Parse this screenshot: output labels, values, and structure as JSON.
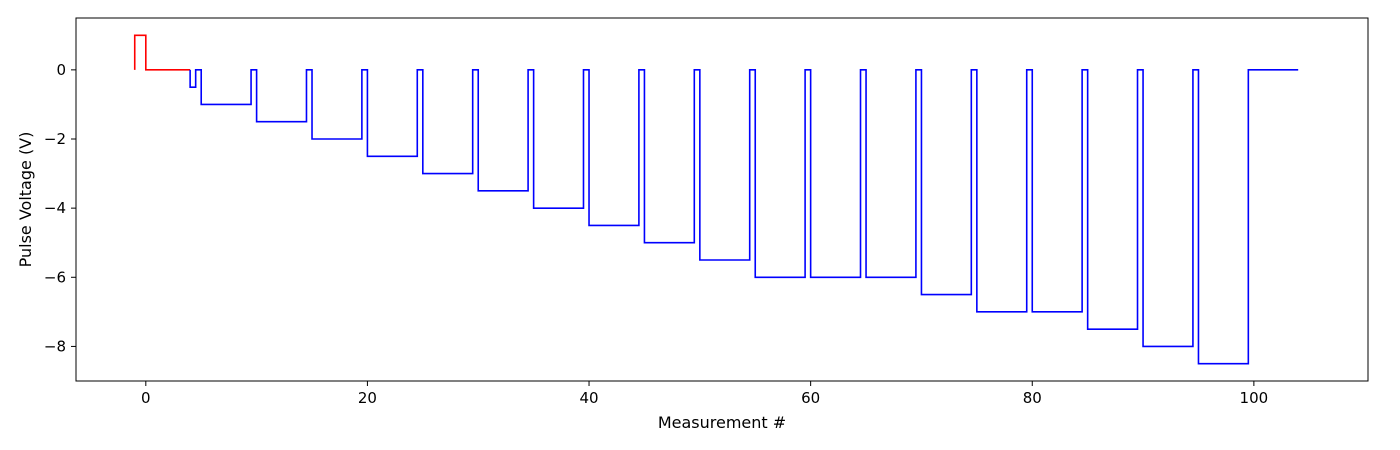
{
  "chart_data": {
    "type": "line",
    "title": "",
    "xlabel": "Measurement #",
    "ylabel": "Pulse Voltage (V)",
    "xlim": [
      -6.3,
      110.3
    ],
    "ylim": [
      -9.0,
      1.5
    ],
    "grid": false,
    "legend": "none",
    "x_ticks": [
      {
        "value": 0,
        "label": "0"
      },
      {
        "value": 20,
        "label": "20"
      },
      {
        "value": 40,
        "label": "40"
      },
      {
        "value": 60,
        "label": "60"
      },
      {
        "value": 80,
        "label": "80"
      },
      {
        "value": 100,
        "label": "100"
      }
    ],
    "y_ticks": [
      {
        "value": 0,
        "label": "0"
      },
      {
        "value": -2,
        "label": "−2"
      },
      {
        "value": -4,
        "label": "−4"
      },
      {
        "value": -6,
        "label": "−6"
      },
      {
        "value": -8,
        "label": "−8"
      }
    ],
    "step": "pre",
    "series": [
      {
        "color": "#ff0000",
        "x": [
          -1,
          -0.5,
          0,
          0.5,
          1,
          1.5,
          2,
          2.5,
          3,
          3.5,
          4
        ],
        "y": [
          0,
          1,
          1,
          0,
          0,
          0,
          0,
          0,
          0,
          0,
          0
        ]
      },
      {
        "color": "#0000ff",
        "x": [
          4,
          4.5,
          5,
          9.5,
          10,
          14.5,
          15,
          19.5,
          20,
          24.5,
          25,
          29.5,
          30,
          34.5,
          35,
          39.5,
          40,
          44.5,
          45,
          49.5,
          50,
          54.5,
          55,
          59.5,
          60,
          64.5,
          65,
          69.5,
          70,
          74.5,
          75,
          79.5,
          80,
          84.5,
          85,
          89.5,
          90,
          94.5,
          95,
          99.5,
          100,
          104
        ],
        "y": [
          0,
          -0.5,
          0,
          -1,
          0,
          -1.5,
          0,
          -2,
          0,
          -2.5,
          0,
          -3,
          0,
          -3.5,
          0,
          -4,
          0,
          -4.5,
          0,
          -5,
          0,
          -5.5,
          0,
          -6,
          0,
          -6,
          0,
          -6,
          0,
          -6.5,
          0,
          -7,
          0,
          -7,
          0,
          -7.5,
          0,
          -8,
          0,
          -8.5,
          0,
          0
        ]
      }
    ]
  }
}
